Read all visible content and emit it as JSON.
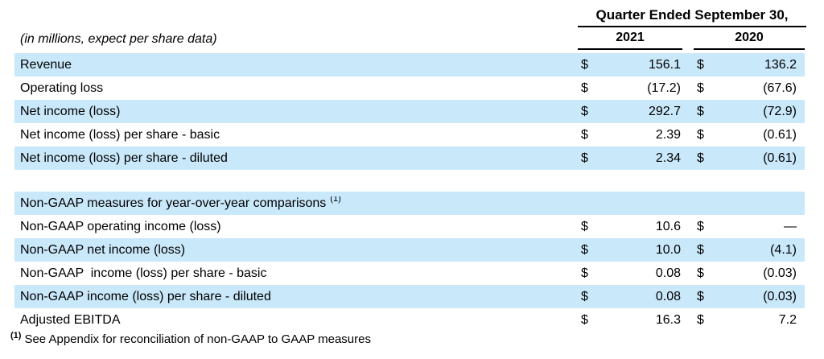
{
  "colors": {
    "highlight": "#c9e8fa",
    "text": "#000000",
    "rule": "#000000"
  },
  "header": {
    "quarter_title": "Quarter Ended September 30,",
    "units_note": "(in millions, expect per share data)",
    "years": [
      "2021",
      "2020"
    ]
  },
  "table": {
    "rows": [
      {
        "label": "Revenue",
        "highlight": true,
        "values": [
          {
            "d": "$",
            "v": "156.1"
          },
          {
            "d": "$",
            "v": "136.2"
          }
        ]
      },
      {
        "label": "Operating loss",
        "highlight": false,
        "values": [
          {
            "d": "$",
            "v": "(17.2)"
          },
          {
            "d": "$",
            "v": "(67.6)"
          }
        ]
      },
      {
        "label": "Net income (loss)",
        "highlight": true,
        "values": [
          {
            "d": "$",
            "v": "292.7"
          },
          {
            "d": "$",
            "v": "(72.9)"
          }
        ]
      },
      {
        "label": "Net income (loss) per share - basic",
        "highlight": false,
        "values": [
          {
            "d": "$",
            "v": "2.39"
          },
          {
            "d": "$",
            "v": "(0.61)"
          }
        ]
      },
      {
        "label": "Net income (loss) per share - diluted",
        "highlight": true,
        "values": [
          {
            "d": "$",
            "v": "2.34"
          },
          {
            "d": "$",
            "v": "(0.61)"
          }
        ]
      },
      {
        "spacer": true
      },
      {
        "label": "Non-GAAP measures for year-over-year comparisons",
        "sup": "(1)",
        "highlight": true,
        "values": []
      },
      {
        "label": "Non-GAAP operating income (loss)",
        "highlight": false,
        "values": [
          {
            "d": "$",
            "v": "10.6"
          },
          {
            "d": "$",
            "v": "—"
          }
        ]
      },
      {
        "label": "Non-GAAP net income (loss)",
        "highlight": true,
        "values": [
          {
            "d": "$",
            "v": "10.0"
          },
          {
            "d": "$",
            "v": "(4.1)"
          }
        ]
      },
      {
        "label": "Non-GAAP  income (loss) per share - basic",
        "highlight": false,
        "values": [
          {
            "d": "$",
            "v": "0.08"
          },
          {
            "d": "$",
            "v": "(0.03)"
          }
        ]
      },
      {
        "label": "Non-GAAP income (loss) per share - diluted",
        "highlight": true,
        "values": [
          {
            "d": "$",
            "v": "0.08"
          },
          {
            "d": "$",
            "v": "(0.03)"
          }
        ]
      },
      {
        "label": "Adjusted EBITDA",
        "highlight": false,
        "values": [
          {
            "d": "$",
            "v": "16.3"
          },
          {
            "d": "$",
            "v": "7.2"
          }
        ]
      }
    ]
  },
  "footnote": {
    "marker": "(1)",
    "text": "See Appendix for reconciliation of non-GAAP to GAAP measures"
  }
}
